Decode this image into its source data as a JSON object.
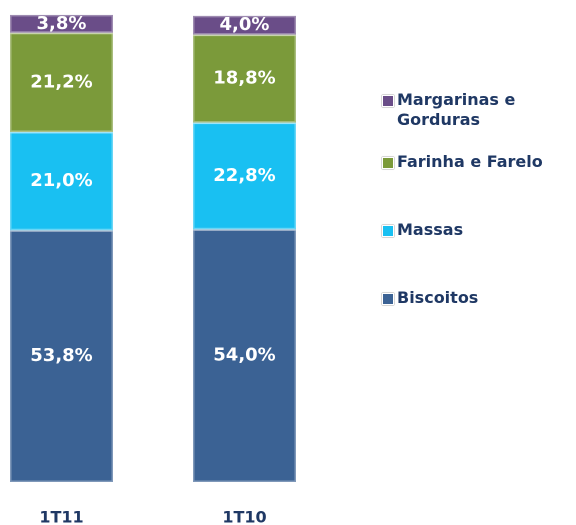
{
  "chart_data": {
    "type": "stacked_bar",
    "categories": [
      "1T11",
      "1T10"
    ],
    "series": [
      {
        "name": "Biscoitos",
        "color": "#3b6294",
        "values": [
          53.8,
          54.0
        ],
        "value_labels": [
          "53,8%",
          "54,0%"
        ]
      },
      {
        "name": "Massas",
        "color": "#19c0f2",
        "values": [
          21.0,
          22.8
        ],
        "value_labels": [
          "21,0%",
          "22,8%"
        ]
      },
      {
        "name": "Farinha e Farelo",
        "color": "#7b9a3a",
        "values": [
          21.2,
          18.8
        ],
        "value_labels": [
          "21,2%",
          "18,8%"
        ]
      },
      {
        "name": "Margarinas e Gorduras",
        "color": "#6a4d88",
        "values": [
          3.8,
          4.0
        ],
        "value_labels": [
          "3,8%",
          "4,0%"
        ]
      }
    ],
    "ylim": [
      0,
      100
    ]
  }
}
